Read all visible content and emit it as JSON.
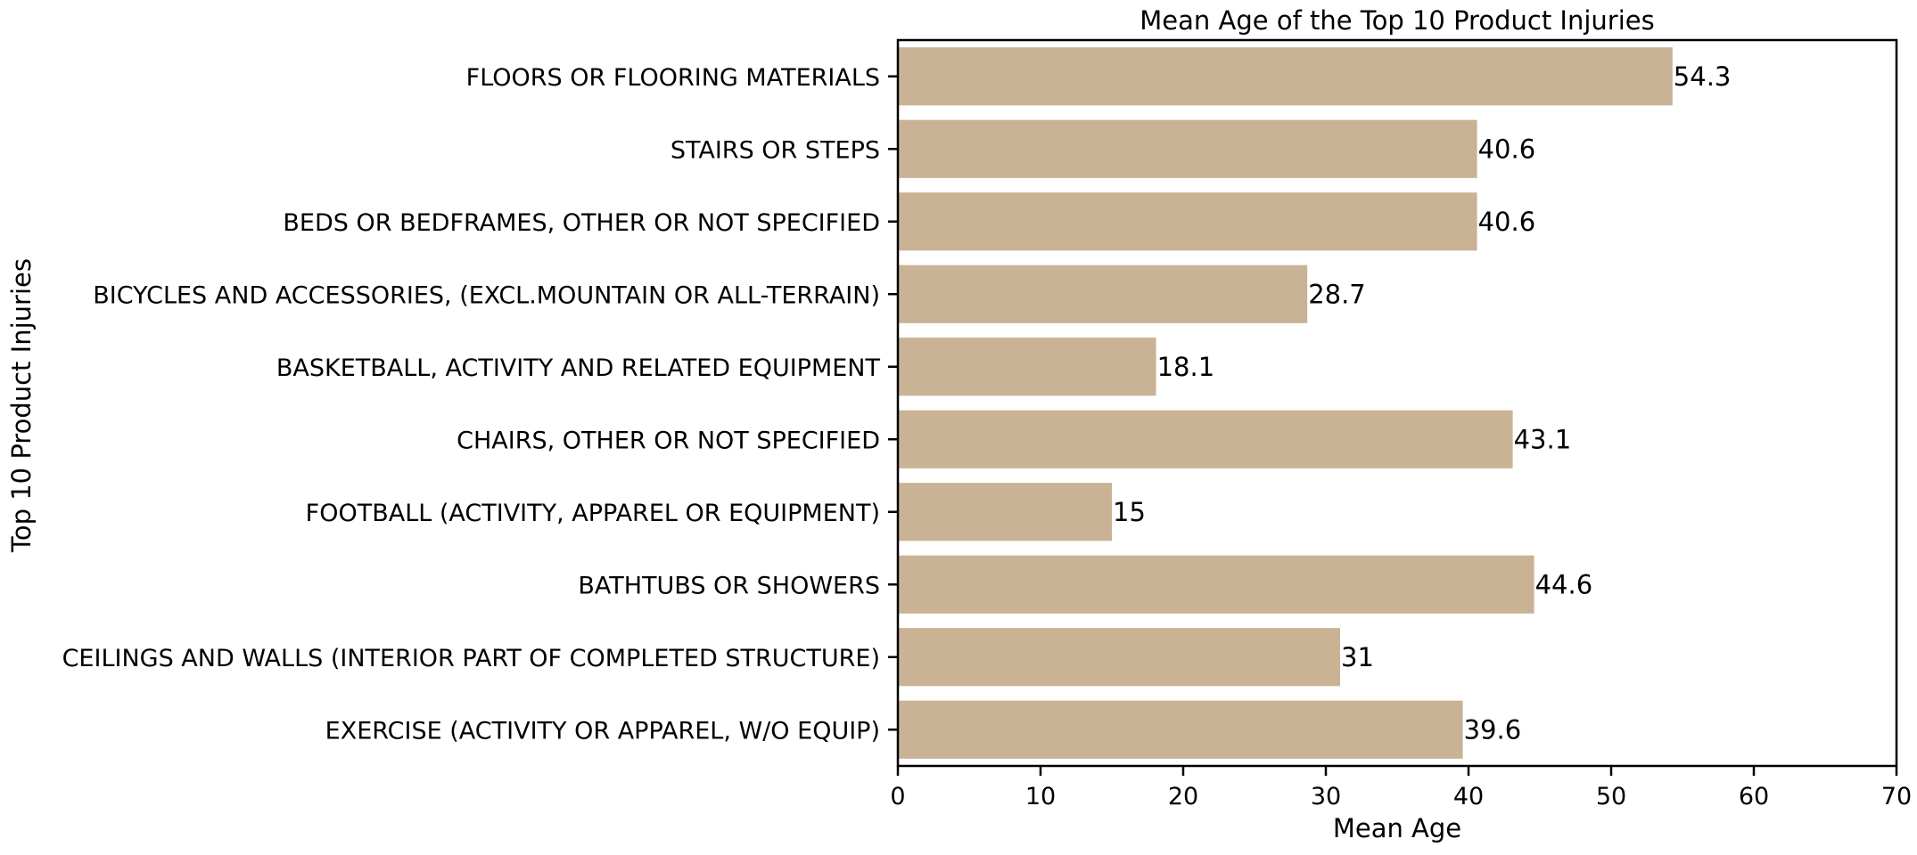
{
  "chart_data": {
    "type": "bar",
    "orientation": "horizontal",
    "title": "Mean Age of the Top 10 Product Injuries",
    "xlabel": "Mean Age",
    "ylabel": "Top 10 Product Injuries",
    "xlim": [
      0,
      70
    ],
    "xticks": [
      0,
      10,
      20,
      30,
      40,
      50,
      60,
      70
    ],
    "grid": false,
    "bar_color": "#c9b394",
    "categories": [
      "FLOORS OR FLOORING MATERIALS",
      "STAIRS OR STEPS",
      "BEDS OR BEDFRAMES, OTHER OR NOT SPECIFIED",
      "BICYCLES AND ACCESSORIES, (EXCL.MOUNTAIN OR ALL-TERRAIN)",
      "BASKETBALL, ACTIVITY AND RELATED EQUIPMENT",
      "CHAIRS, OTHER OR NOT SPECIFIED",
      "FOOTBALL (ACTIVITY, APPAREL OR EQUIPMENT)",
      "BATHTUBS OR SHOWERS",
      "CEILINGS AND WALLS (INTERIOR PART OF COMPLETED STRUCTURE)",
      "EXERCISE (ACTIVITY OR APPAREL, W/O EQUIP)"
    ],
    "values": [
      54.3,
      40.6,
      40.6,
      28.7,
      18.1,
      43.1,
      15,
      44.6,
      31,
      39.6
    ],
    "data_labels": [
      "54.3",
      "40.6",
      "40.6",
      "28.7",
      "18.1",
      "43.1",
      "15",
      "44.6",
      "31",
      "39.6"
    ]
  }
}
